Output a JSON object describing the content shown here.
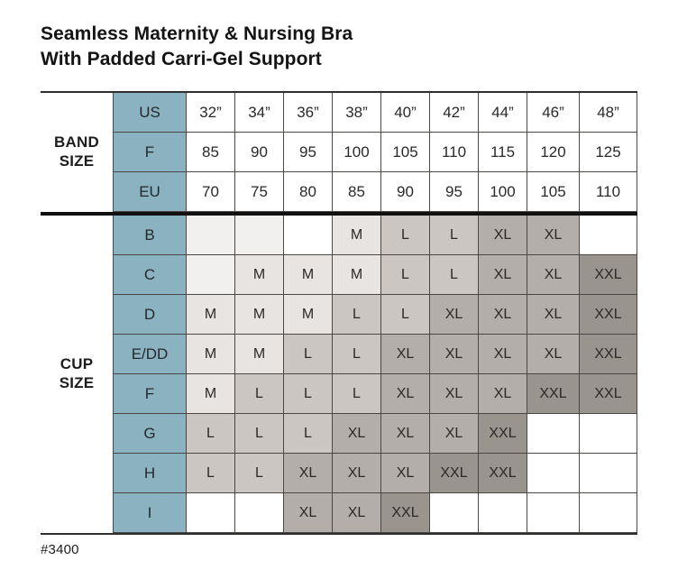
{
  "title": {
    "line1": "Seamless Maternity & Nursing Bra",
    "line2": "With Padded Carri-Gel Support"
  },
  "product_code": "#3400",
  "colors": {
    "header_blue": "#8ab2c0",
    "size_m": "#e8e4e1",
    "size_l": "#cbc6c2",
    "size_xl": "#b3aeaa",
    "size_xxl": "#9a948f",
    "empty_pale": "#f2f0ee"
  },
  "chart_data": {
    "type": "table",
    "title": "Seamless Maternity & Nursing Bra With Padded Carri-Gel Support",
    "band_group_label": "BAND SIZE",
    "cup_group_label": "CUP SIZE",
    "value_legend": [
      "M",
      "L",
      "XL",
      "XXL"
    ],
    "band_rows": [
      {
        "label": "US",
        "values": [
          "32”",
          "34”",
          "36”",
          "38”",
          "40”",
          "42”",
          "44”",
          "46”",
          "48”"
        ]
      },
      {
        "label": "F",
        "values": [
          "85",
          "90",
          "95",
          "100",
          "105",
          "110",
          "115",
          "120",
          "125"
        ]
      },
      {
        "label": "EU",
        "values": [
          "70",
          "75",
          "80",
          "85",
          "90",
          "95",
          "100",
          "105",
          "110"
        ]
      }
    ],
    "cup_rows": [
      {
        "label": "B",
        "values": [
          "",
          "",
          "",
          "M",
          "L",
          "L",
          "XL",
          "XL",
          ""
        ]
      },
      {
        "label": "C",
        "values": [
          "",
          "M",
          "M",
          "M",
          "L",
          "L",
          "XL",
          "XL",
          "XXL"
        ]
      },
      {
        "label": "D",
        "values": [
          "M",
          "M",
          "M",
          "L",
          "L",
          "XL",
          "XL",
          "XL",
          "XXL"
        ]
      },
      {
        "label": "E/DD",
        "values": [
          "M",
          "M",
          "L",
          "L",
          "XL",
          "XL",
          "XL",
          "XL",
          "XXL"
        ]
      },
      {
        "label": "F",
        "values": [
          "M",
          "L",
          "L",
          "L",
          "XL",
          "XL",
          "XL",
          "XXL",
          "XXL"
        ]
      },
      {
        "label": "G",
        "values": [
          "L",
          "L",
          "L",
          "XL",
          "XL",
          "XL",
          "XXL",
          "",
          ""
        ]
      },
      {
        "label": "H",
        "values": [
          "L",
          "L",
          "XL",
          "XL",
          "XL",
          "XXL",
          "XXL",
          "",
          ""
        ]
      },
      {
        "label": "I",
        "values": [
          "",
          "",
          "XL",
          "XL",
          "XXL",
          "",
          "",
          "",
          ""
        ]
      }
    ]
  }
}
